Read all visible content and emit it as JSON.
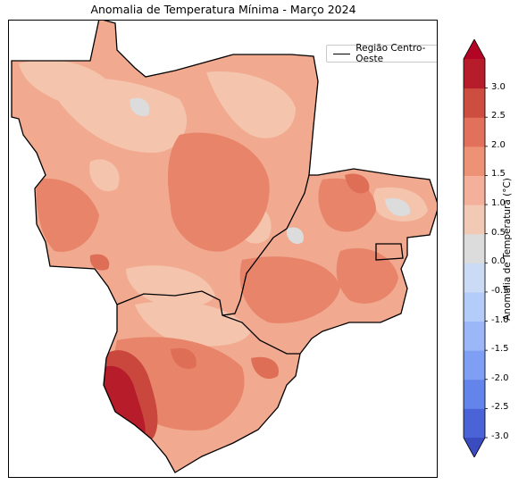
{
  "title": "Anomalia de Temperatura Mínima - Março 2024",
  "legend": {
    "label": "Região Centro-Oeste",
    "line_color": "#000000"
  },
  "colorbar": {
    "label": "Anomalia de Temperatura (°C)",
    "ticks": [
      "-3.0",
      "-2.5",
      "-2.0",
      "-1.5",
      "-1.0",
      "-0.5",
      "0.0",
      "0.5",
      "1.0",
      "1.5",
      "2.0",
      "2.5",
      "3.0"
    ],
    "bins": [
      "#4a63d6",
      "#6384ea",
      "#7e9ff4",
      "#9bb7f8",
      "#b4ccfa",
      "#cbdaf5",
      "#dcdcdc",
      "#f2c9b4",
      "#f4b09b",
      "#ee9276",
      "#e1715a",
      "#cd4d40",
      "#b71c2a"
    ],
    "under_color": "#3b4cc0",
    "over_color": "#b40426"
  },
  "map": {
    "region_fill": "#f1a98f",
    "colors": {
      "light": "#f4c4ad",
      "pale": "#dcdcdc",
      "medium": "#e8846a",
      "warm": "#de6e55",
      "hot": "#c9473d",
      "extreme": "#b71c2a"
    }
  }
}
